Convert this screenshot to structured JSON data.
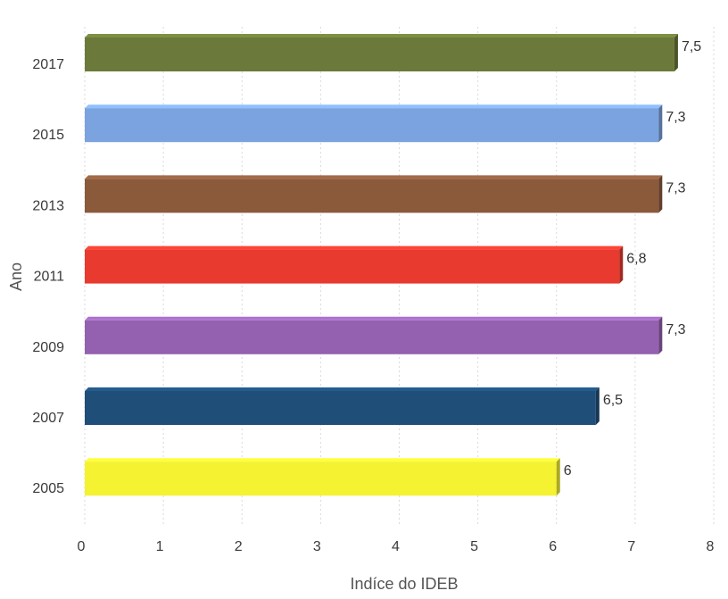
{
  "chart_data": {
    "type": "bar",
    "orientation": "horizontal",
    "title": "",
    "xlabel": "Indíce do IDEB",
    "ylabel": "Ano",
    "xlim": [
      0,
      8
    ],
    "x_ticks": [
      "0",
      "1",
      "2",
      "3",
      "4",
      "5",
      "6",
      "7",
      "8"
    ],
    "grid": true,
    "categories": [
      "2017",
      "2015",
      "2013",
      "2011",
      "2009",
      "2007",
      "2005"
    ],
    "values": [
      7.5,
      7.3,
      7.3,
      6.8,
      7.3,
      6.5,
      6
    ],
    "value_labels": [
      "7,5",
      "7,3",
      "7,3",
      "6,8",
      "7,3",
      "6,5",
      "6"
    ],
    "colors": [
      "#6b7a3a",
      "#7aa3e0",
      "#8a5a3b",
      "#e83a2e",
      "#9461b0",
      "#1f4e79",
      "#f5f232"
    ]
  }
}
